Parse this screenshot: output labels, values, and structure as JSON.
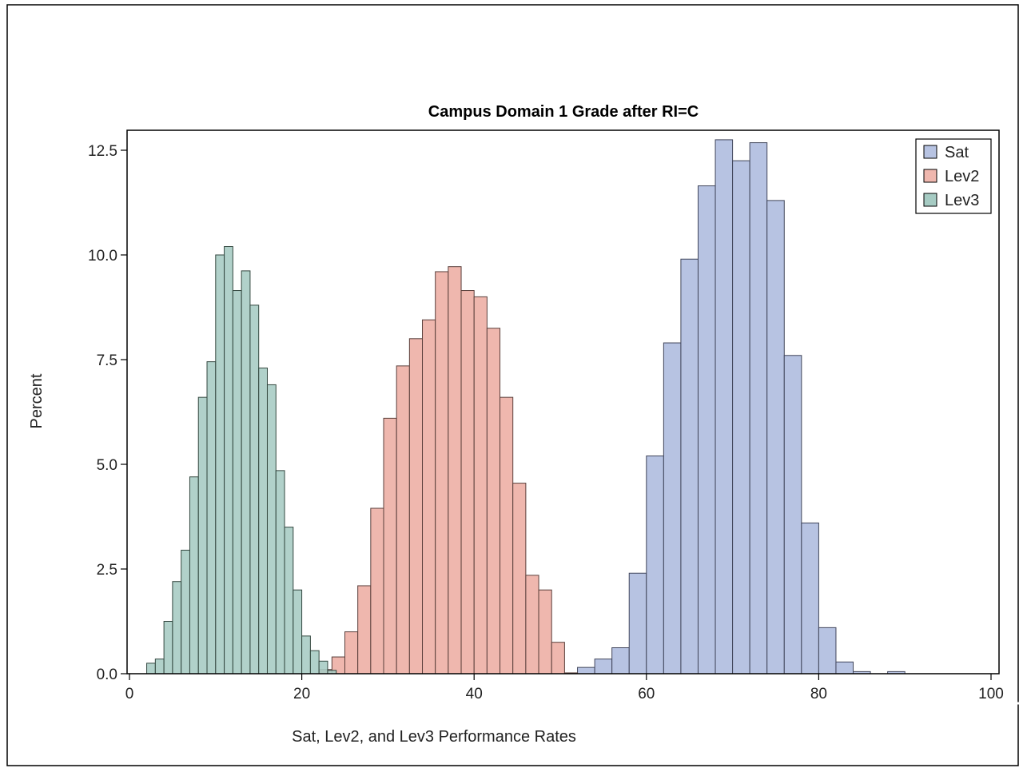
{
  "chart_data": {
    "type": "bar",
    "title": "Campus Domain 1 Grade after RI=C",
    "xlabel": "Sat, Lev2, and Lev3 Performance Rates",
    "ylabel": "Percent",
    "xlim": [
      0,
      100
    ],
    "ylim": [
      0,
      12.5
    ],
    "xticks": [
      "0",
      "20",
      "40",
      "60",
      "80",
      "100"
    ],
    "yticks": [
      "0.0",
      "2.5",
      "5.0",
      "7.5",
      "10.0",
      "12.5"
    ],
    "grid": false,
    "legend_position": "top-right",
    "series": [
      {
        "name": "Sat",
        "color": "#b7c3e2",
        "stroke": "#40455a",
        "bin_width": 2,
        "x": [
          53,
          55,
          57,
          59,
          61,
          63,
          65,
          67,
          69,
          71,
          73,
          75,
          77,
          79,
          81,
          83,
          85,
          87,
          89
        ],
        "values": [
          0.15,
          0.35,
          0.62,
          2.4,
          5.2,
          7.9,
          9.9,
          11.65,
          12.75,
          12.25,
          12.68,
          11.3,
          7.6,
          3.6,
          1.1,
          0.28,
          0.05,
          0.0,
          0.05
        ]
      },
      {
        "name": "Lev2",
        "color": "#efb7ae",
        "stroke": "#5a3f3b",
        "bin_width": 1.5,
        "x": [
          22.75,
          24.25,
          25.75,
          27.25,
          28.75,
          30.25,
          31.75,
          33.25,
          34.75,
          36.25,
          37.75,
          39.25,
          40.75,
          42.25,
          43.75,
          45.25,
          46.75,
          48.25,
          49.75,
          51.25
        ],
        "values": [
          0.1,
          0.4,
          1.0,
          2.1,
          3.95,
          6.1,
          7.35,
          8.0,
          8.45,
          9.6,
          9.72,
          9.15,
          9.0,
          8.25,
          6.6,
          4.55,
          2.35,
          2.0,
          0.75,
          0.02
        ]
      },
      {
        "name": "Lev3",
        "color": "#a6cbc3",
        "stroke": "#33473f",
        "bin_width": 1,
        "x": [
          2.5,
          3.5,
          4.5,
          5.5,
          6.5,
          7.5,
          8.5,
          9.5,
          10.5,
          11.5,
          12.5,
          13.5,
          14.5,
          15.5,
          16.5,
          17.5,
          18.5,
          19.5,
          20.5,
          21.5,
          22.5,
          23.5
        ],
        "values": [
          0.25,
          0.35,
          1.25,
          2.2,
          2.95,
          4.7,
          6.6,
          7.45,
          10.0,
          10.2,
          9.15,
          9.62,
          8.8,
          7.3,
          6.9,
          4.85,
          3.5,
          2.0,
          0.9,
          0.55,
          0.3,
          0.08
        ]
      }
    ]
  }
}
